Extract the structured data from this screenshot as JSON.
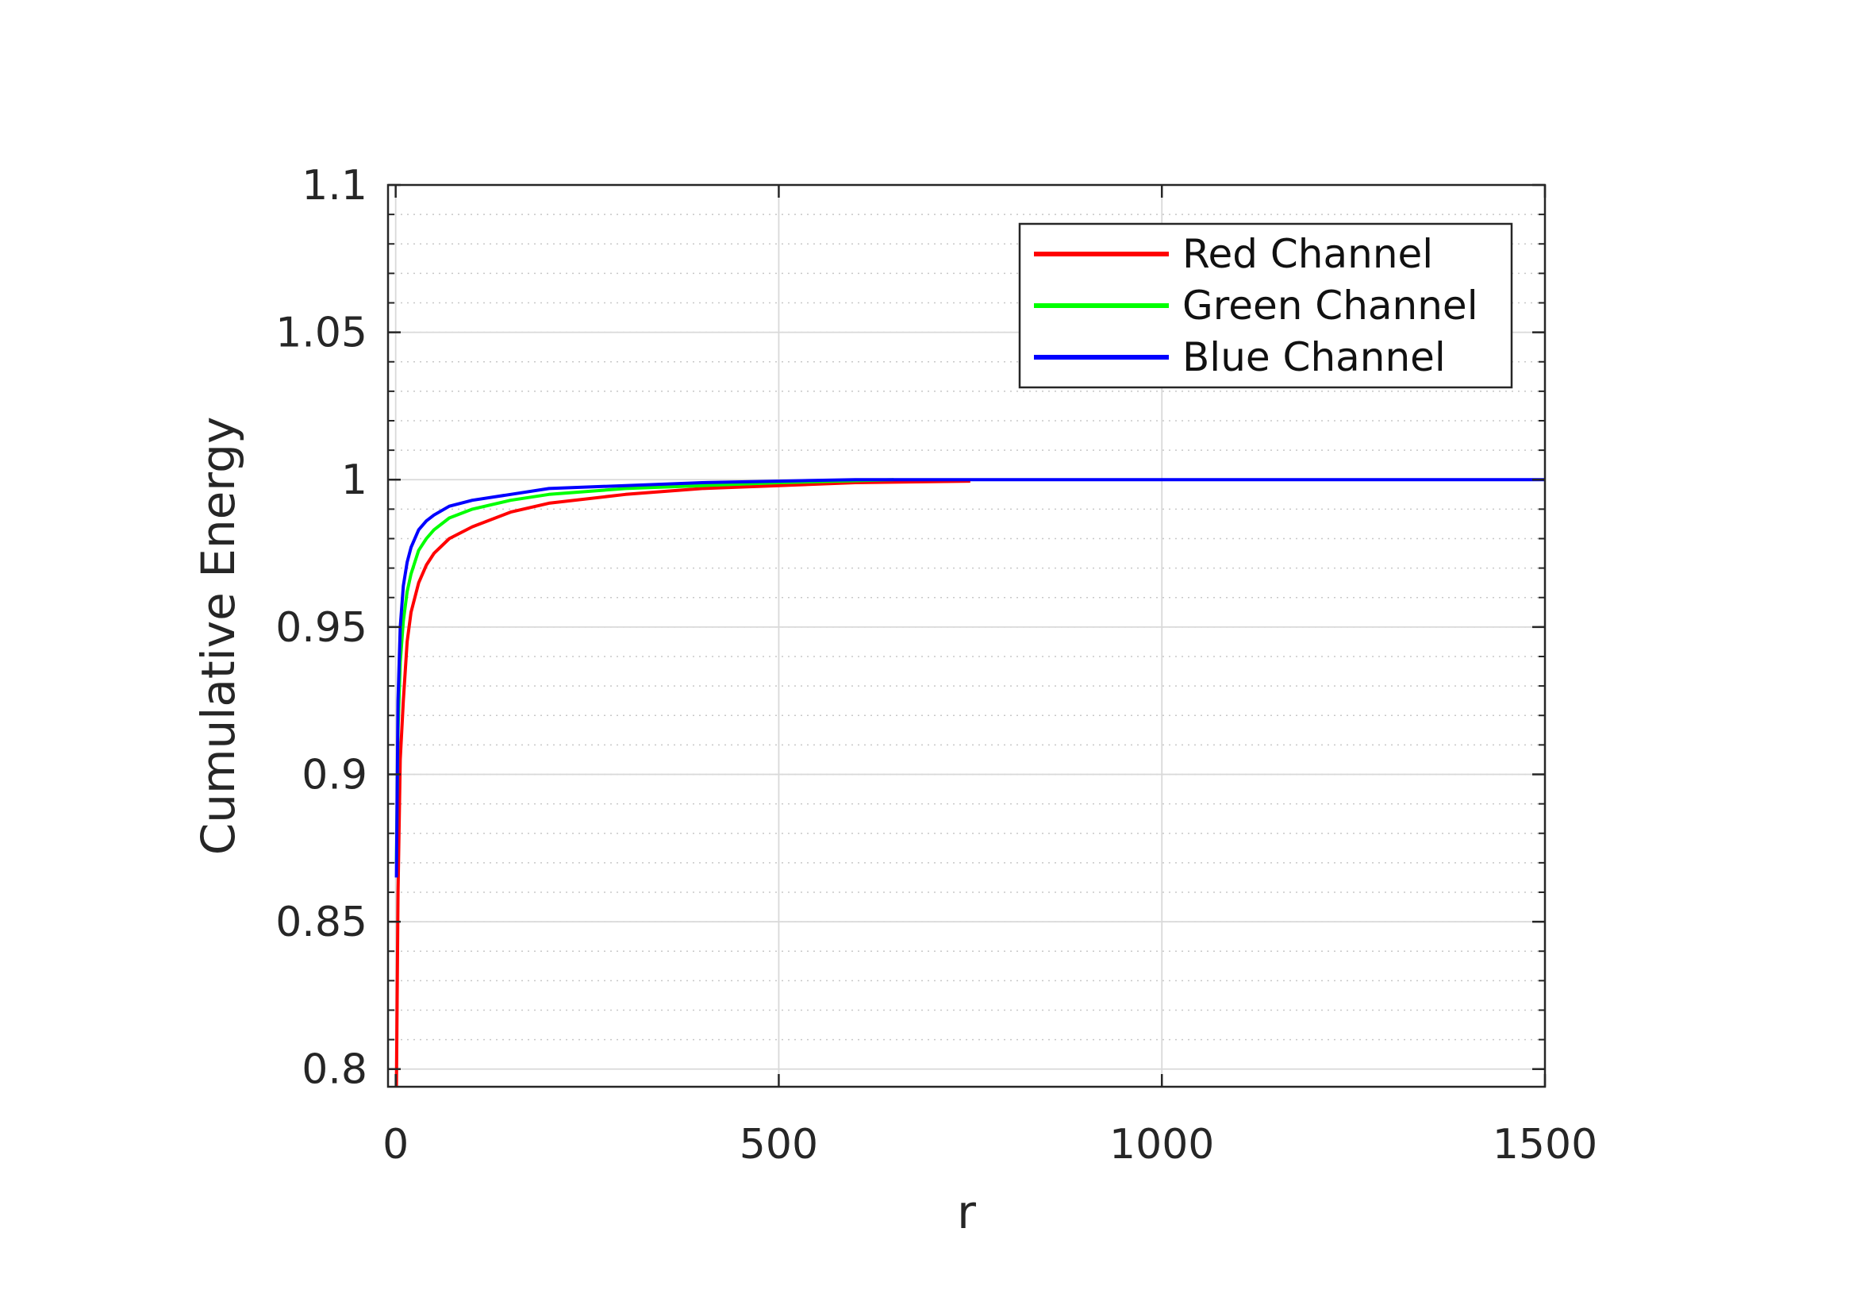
{
  "chart_data": {
    "type": "line",
    "title": "",
    "xlabel": "r",
    "ylabel": "Cumulative Energy",
    "xlim": [
      -10,
      1500
    ],
    "ylim": [
      0.794,
      1.1
    ],
    "xticks": [
      "0",
      "500",
      "1000",
      "1500"
    ],
    "yticks": [
      "0.8",
      "0.85",
      "0.9",
      "0.95",
      "1",
      "1.05",
      "1.1"
    ],
    "xtick_values": [
      0,
      500,
      1000,
      1500
    ],
    "ytick_values": [
      0.8,
      0.85,
      0.9,
      0.95,
      1.0,
      1.05,
      1.1
    ],
    "grid": true,
    "minor_grid": true,
    "legend_position": "top-right",
    "series": [
      {
        "name": "Red Channel",
        "color": "#ff0000",
        "x": [
          1,
          3,
          6,
          10,
          15,
          20,
          30,
          40,
          50,
          70,
          100,
          150,
          200,
          300,
          400,
          500,
          600,
          750
        ],
        "y": [
          0.794,
          0.86,
          0.905,
          0.925,
          0.945,
          0.955,
          0.965,
          0.971,
          0.975,
          0.98,
          0.984,
          0.989,
          0.992,
          0.995,
          0.997,
          0.998,
          0.999,
          0.9995
        ]
      },
      {
        "name": "Green Channel",
        "color": "#00ff00",
        "x": [
          1,
          3,
          6,
          10,
          15,
          20,
          30,
          40,
          50,
          70,
          100,
          150,
          200,
          300,
          400,
          500,
          650
        ],
        "y": [
          0.87,
          0.915,
          0.938,
          0.952,
          0.962,
          0.968,
          0.976,
          0.98,
          0.983,
          0.987,
          0.99,
          0.993,
          0.995,
          0.997,
          0.998,
          0.999,
          1.0
        ]
      },
      {
        "name": "Blue Channel",
        "color": "#0000ff",
        "x": [
          1,
          3,
          6,
          10,
          15,
          20,
          30,
          40,
          50,
          70,
          100,
          150,
          200,
          300,
          400,
          500,
          600,
          1500
        ],
        "y": [
          0.865,
          0.925,
          0.95,
          0.964,
          0.972,
          0.977,
          0.983,
          0.986,
          0.988,
          0.991,
          0.993,
          0.995,
          0.997,
          0.998,
          0.999,
          0.9995,
          1.0,
          1.0
        ]
      }
    ]
  }
}
